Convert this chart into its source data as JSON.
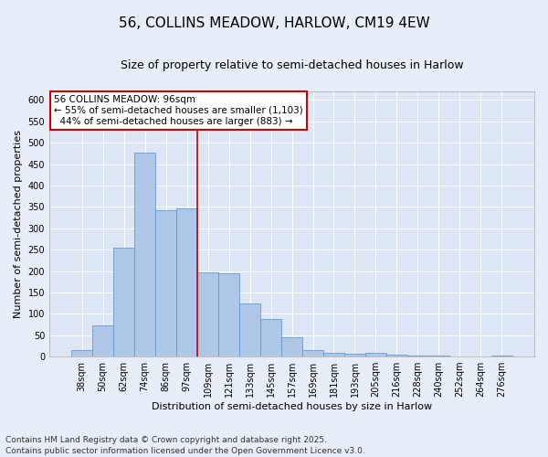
{
  "title1": "56, COLLINS MEADOW, HARLOW, CM19 4EW",
  "title2": "Size of property relative to semi-detached houses in Harlow",
  "xlabel": "Distribution of semi-detached houses by size in Harlow",
  "ylabel": "Number of semi-detached properties",
  "footnote": "Contains HM Land Registry data © Crown copyright and database right 2025.\nContains public sector information licensed under the Open Government Licence v3.0.",
  "categories": [
    "38sqm",
    "50sqm",
    "62sqm",
    "74sqm",
    "86sqm",
    "97sqm",
    "109sqm",
    "121sqm",
    "133sqm",
    "145sqm",
    "157sqm",
    "169sqm",
    "181sqm",
    "193sqm",
    "205sqm",
    "216sqm",
    "228sqm",
    "240sqm",
    "252sqm",
    "264sqm",
    "276sqm"
  ],
  "values": [
    15,
    73,
    255,
    477,
    342,
    347,
    196,
    195,
    125,
    87,
    46,
    15,
    8,
    6,
    9,
    5,
    3,
    2,
    1,
    0,
    2
  ],
  "bar_color": "#aec6e8",
  "bar_edge_color": "#5b8fc9",
  "marker_line_bin": 5,
  "marker_label": "56 COLLINS MEADOW: 96sqm",
  "smaller_pct": "55%",
  "smaller_n": "1,103",
  "larger_pct": "44%",
  "larger_n": "883",
  "annotation_box_color": "#cc0000",
  "ylim": [
    0,
    620
  ],
  "yticks": [
    0,
    50,
    100,
    150,
    200,
    250,
    300,
    350,
    400,
    450,
    500,
    550,
    600
  ],
  "bg_color": "#e8eef7",
  "plot_bg": "#dce6f5",
  "grid_color": "#ffffff",
  "title_fontsize": 11,
  "subtitle_fontsize": 9,
  "axis_label_fontsize": 8,
  "tick_fontsize": 7,
  "footnote_fontsize": 6.5,
  "annotation_fontsize": 7.5
}
